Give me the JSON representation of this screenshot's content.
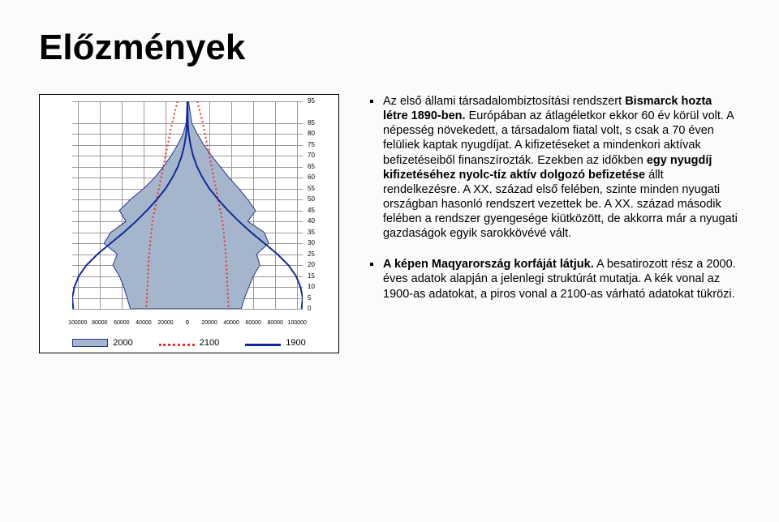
{
  "title": "Előzmények",
  "bullets": [
    {
      "html": "Az első állami társadalombiztosítási rendszert <b>Bismarck hozta létre 1890-ben.</b> Európában az átlagéletkor ekkor 60 év körül volt. A népesség növekedett, a társadalom fiatal volt, s csak a 70 éven felüliek kaptak nyugdíjat. A kifizetéseket a mindenkori aktívak befizetéseiből finanszírozták. Ezekben az időkben <b>egy nyugdíj kifizetéséhez nyolc-tíz aktív dolgozó befizetése</b> állt rendelkezésre. A XX. század első felében, szinte minden nyugati országban hasonló rendszert vezettek be. A XX. század második felében a rendszer gyengesége kiütközött, de akkorra már a nyugati gazdaságok egyik sarokkövévé vált."
    },
    {
      "html": "<b>A képen Maqyarország korfáját látjuk.</b> A besatirozott rész a 2000. éves adatok alapján a jelenlegi struktúrát mutatja. A kék vonal az 1900-as adatokat, a piros vonal a 2100-as várható adatokat tükrözi."
    }
  ],
  "chart": {
    "type": "population-pyramid",
    "background_color": "#ffffff",
    "grid_color": "#999999",
    "axis_color": "#000000",
    "x_ticks": [
      -100000,
      -80000,
      -60000,
      -40000,
      -20000,
      0,
      0,
      20000,
      40000,
      60000,
      80000,
      100000
    ],
    "x_labels": [
      "100000",
      "80000",
      "60000",
      "40000",
      "20000",
      "0",
      "0",
      "20000",
      "40000",
      "60000",
      "80000",
      "100000"
    ],
    "y_ticks": [
      95,
      85,
      80,
      75,
      70,
      65,
      60,
      55,
      50,
      45,
      40,
      35,
      30,
      25,
      20,
      15,
      10,
      5,
      0
    ],
    "y_labels_shown": [
      "95",
      "85",
      "80",
      "75",
      "70",
      "65",
      "60",
      "55",
      "50",
      "45",
      "40",
      "35",
      "30",
      "25",
      "20",
      "15",
      "10",
      "5",
      "0"
    ],
    "series": [
      {
        "name": "2000",
        "color": "#a5b6cc",
        "stroke": "#26338f",
        "type": "filled-bars",
        "values_left": [
          200,
          1200,
          4000,
          9000,
          15000,
          22000,
          30000,
          40000,
          52000,
          62000,
          56000,
          70000,
          76000,
          64000,
          68000,
          62000,
          58000,
          55000,
          52000
        ],
        "values_right": [
          1000,
          4000,
          9000,
          15000,
          22000,
          30000,
          38000,
          47000,
          55000,
          62000,
          55000,
          70000,
          74000,
          63000,
          66000,
          60000,
          56000,
          52000,
          49000
        ]
      },
      {
        "name": "2100",
        "color": "#e63427",
        "type": "line-dotted",
        "values_left": [
          9000,
          14000,
          16000,
          18000,
          20000,
          22000,
          24000,
          26000,
          28000,
          30000,
          32000,
          33000,
          34000,
          35000,
          35500,
          36000,
          36500,
          37000,
          37500
        ],
        "values_right": [
          9000,
          14000,
          16000,
          18000,
          20000,
          22000,
          24000,
          26000,
          28000,
          30000,
          32000,
          33000,
          34000,
          35000,
          35500,
          36000,
          36500,
          37000,
          37500
        ]
      },
      {
        "name": "1900",
        "color": "#102a9a",
        "type": "line",
        "values_left": [
          100,
          400,
          1200,
          2800,
          5200,
          8800,
          13800,
          20000,
          28000,
          37000,
          47000,
          58000,
          70000,
          82000,
          92000,
          99000,
          103000,
          105000,
          104000
        ],
        "values_right": [
          100,
          400,
          1200,
          2800,
          5200,
          8800,
          13800,
          20000,
          28000,
          37000,
          47000,
          58000,
          70000,
          82000,
          92000,
          99000,
          103000,
          105000,
          104000
        ]
      }
    ],
    "legend": [
      {
        "label": "2000",
        "swatch": "#a5b6cc",
        "border": "#26338f"
      },
      {
        "label": "2100",
        "swatch_line": "#e63427",
        "dotted": true
      },
      {
        "label": "1900",
        "swatch_line": "#102a9a",
        "dotted": false
      }
    ],
    "legend_fontsize": 11,
    "xaxis_fontsize": 7,
    "yaxis_fontsize": 8,
    "xlim": 105000
  }
}
